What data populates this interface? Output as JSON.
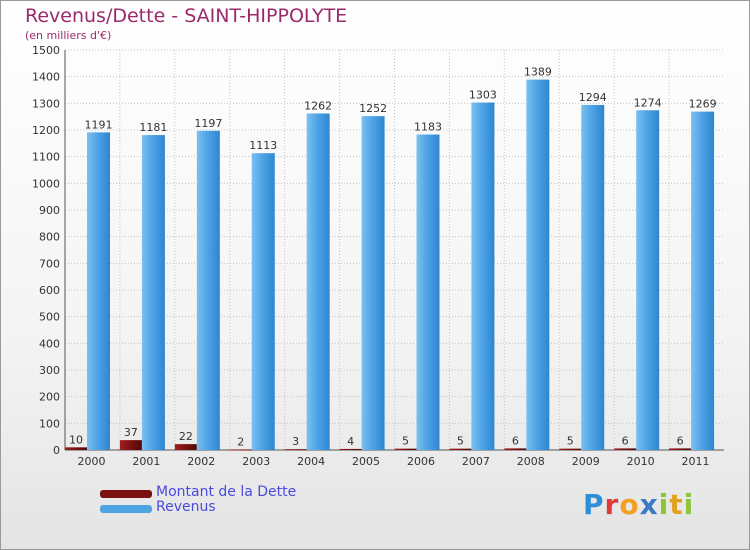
{
  "header": {
    "title": "Revenus/Dette - SAINT-HIPPOLYTE",
    "subtitle": "(en milliers d'€)"
  },
  "legend": {
    "items": [
      {
        "label": "Montant de la Dette",
        "color": "#7a1010"
      },
      {
        "label": "Revenus",
        "color": "#4fa3e3"
      }
    ]
  },
  "logo": {
    "text": "Proxiti",
    "letters": [
      "P",
      "r",
      "o",
      "x",
      "i",
      "t",
      "i"
    ],
    "colors": [
      "#2e8fd6",
      "#e23a3a",
      "#f2a020",
      "#3a78c8",
      "#8cc43a",
      "#e2a020",
      "#8cc43a"
    ]
  },
  "chart_data": {
    "type": "bar",
    "title": "Revenus/Dette - SAINT-HIPPOLYTE",
    "subtitle": "(en milliers d'€)",
    "xlabel": "",
    "ylabel": "",
    "ylim": [
      0,
      1500
    ],
    "yticks": [
      0,
      100,
      200,
      300,
      400,
      500,
      600,
      700,
      800,
      900,
      1000,
      1100,
      1200,
      1300,
      1400,
      1500
    ],
    "grid": true,
    "categories": [
      "2000",
      "2001",
      "2002",
      "2003",
      "2004",
      "2005",
      "2006",
      "2007",
      "2008",
      "2009",
      "2010",
      "2011"
    ],
    "series": [
      {
        "name": "Montant de la Dette",
        "color": "#7a1010",
        "values": [
          10,
          37,
          22,
          2,
          3,
          4,
          5,
          5,
          6,
          5,
          6,
          6
        ]
      },
      {
        "name": "Revenus",
        "color": "#4fa3e3",
        "values": [
          1191,
          1181,
          1197,
          1113,
          1262,
          1252,
          1183,
          1303,
          1389,
          1294,
          1274,
          1269
        ]
      }
    ],
    "legend_position": "bottom-left"
  }
}
